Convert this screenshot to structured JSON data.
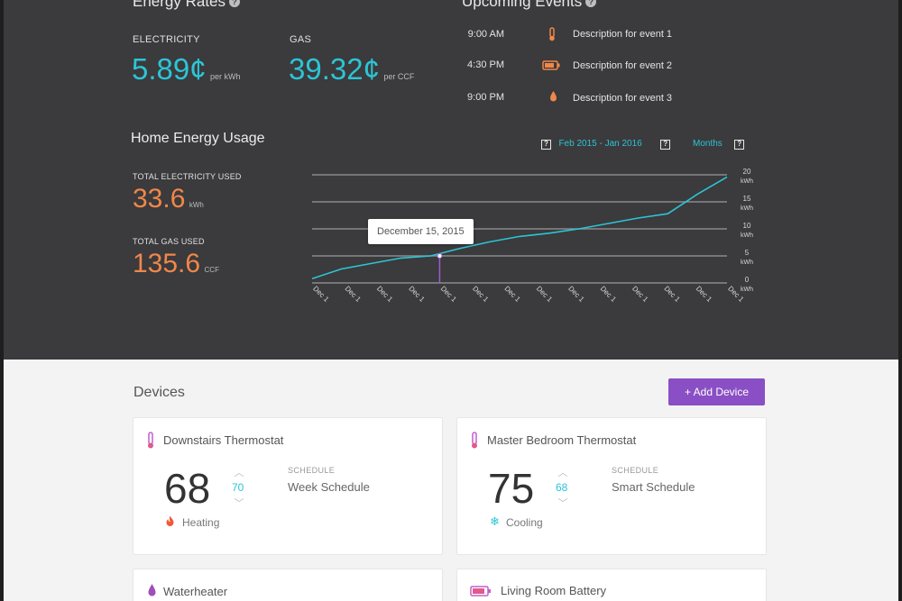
{
  "energy_rates": {
    "title": "Energy Rates",
    "electricity": {
      "label": "ELECTRICITY",
      "value": "5.89¢",
      "unit": "per kWh"
    },
    "gas": {
      "label": "GAS",
      "value": "39.32¢",
      "unit": "per CCF"
    }
  },
  "upcoming_events": {
    "title": "Upcoming Events",
    "items": [
      {
        "time": "9:00 AM",
        "icon": "thermometer-icon",
        "desc": "Description for event 1"
      },
      {
        "time": "4:30 PM",
        "icon": "battery-icon",
        "desc": "Description for event 2"
      },
      {
        "time": "9:00 PM",
        "icon": "water-drop-icon",
        "desc": "Description for event 3"
      }
    ]
  },
  "usage": {
    "title": "Home Energy Usage",
    "date_range": "Feb 2015 - Jan 2016",
    "period": "Months",
    "total_electricity": {
      "label": "TOTAL ELECTRICITY USED",
      "value": "33.6",
      "unit": "kWh"
    },
    "total_gas": {
      "label": "TOTAL GAS USED",
      "value": "135.6",
      "unit": "CCF"
    },
    "tooltip": "December 15, 2015"
  },
  "chart_data": {
    "type": "line",
    "x_tick_labels": [
      "Dec 1",
      "Dec 1",
      "Dec 1",
      "Dec 1",
      "Dec 1",
      "Dec 1",
      "Dec 1",
      "Dec 1",
      "Dec 1",
      "Dec 1",
      "Dec 1",
      "Dec 1",
      "Dec 1",
      "Dec 1"
    ],
    "y_ticks": [
      0,
      5,
      10,
      15,
      20
    ],
    "y_unit": "kWh",
    "ylim": [
      0,
      20
    ],
    "values": [
      0.8,
      2.6,
      3.6,
      4.6,
      5.0,
      6.4,
      7.6,
      8.6,
      9.2,
      10.0,
      11.0,
      12.0,
      12.8,
      16.4,
      19.6
    ],
    "highlight_index": 4,
    "line_color": "#2bc5d6",
    "highlight_color": "#9b5fd1",
    "grid": true
  },
  "devices": {
    "title": "Devices",
    "add_label": "+ Add Device",
    "schedule_label": "SCHEDULE",
    "cards": [
      {
        "name": "Downstairs Thermostat",
        "icon": "thermometer-icon",
        "temp": "68",
        "set_temp": "70",
        "schedule": "Week Schedule",
        "status": "Heating",
        "status_icon": "flame-icon"
      },
      {
        "name": "Master Bedroom Thermostat",
        "icon": "thermometer-icon",
        "temp": "75",
        "set_temp": "68",
        "schedule": "Smart Schedule",
        "status": "Cooling",
        "status_icon": "snowflake-icon"
      },
      {
        "name": "Waterheater",
        "icon": "water-drop-icon"
      },
      {
        "name": "Living Room Battery",
        "icon": "battery-icon"
      }
    ]
  },
  "colors": {
    "accent": "#2bc5d6",
    "orange": "#f0874a",
    "purple": "#8a4fc4",
    "dark_bg": "#3b3a3c"
  }
}
